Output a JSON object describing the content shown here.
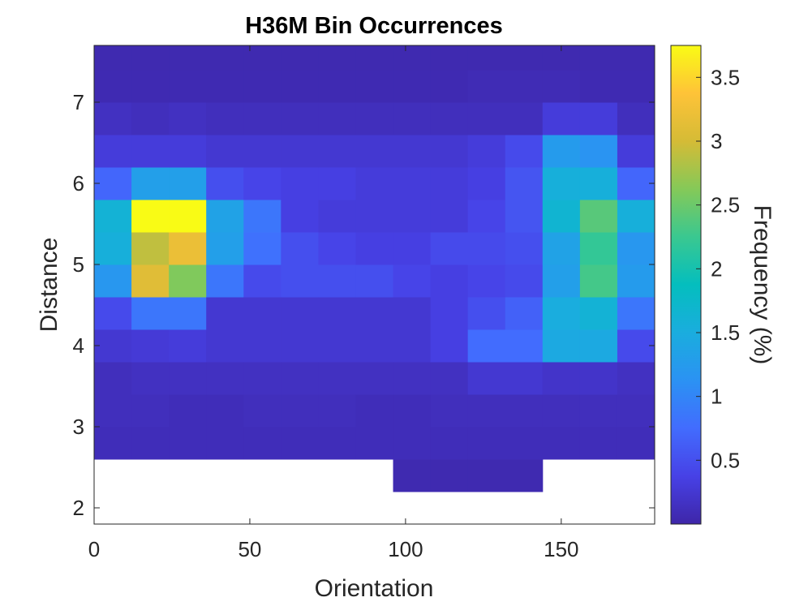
{
  "chart_data": {
    "type": "heatmap",
    "title": "H36M Bin Occurrences",
    "xlabel": "Orientation",
    "ylabel": "Distance",
    "colorbar_label": "Frequency (%)",
    "colormap": "parula",
    "xlim": [
      0,
      180
    ],
    "ylim": [
      1.8,
      7.7
    ],
    "clim": [
      0,
      3.75
    ],
    "x_ticks": [
      0,
      50,
      100,
      150
    ],
    "y_ticks": [
      2,
      3,
      4,
      5,
      6,
      7
    ],
    "colorbar_ticks": [
      0.5,
      1,
      1.5,
      2,
      2.5,
      3,
      3.5
    ],
    "x_bin_edges": [
      0,
      12,
      24,
      36,
      48,
      60,
      72,
      84,
      96,
      108,
      120,
      132,
      144,
      156,
      168,
      180
    ],
    "y_bin_edges": [
      2.2,
      2.6,
      3.0,
      3.4,
      3.8,
      4.2,
      4.6,
      5.0,
      5.4,
      5.8,
      6.2,
      6.6,
      7.0,
      7.4,
      7.8
    ],
    "values": [
      [
        null,
        null,
        null,
        null,
        null,
        null,
        null,
        null,
        0.05,
        0.05,
        0.05,
        0.05,
        null,
        null,
        null
      ],
      [
        0.1,
        0.1,
        0.1,
        0.1,
        0.1,
        0.1,
        0.1,
        0.1,
        0.1,
        0.1,
        0.1,
        0.1,
        0.1,
        0.1,
        0.1
      ],
      [
        0.12,
        0.12,
        0.1,
        0.1,
        0.12,
        0.12,
        0.12,
        0.1,
        0.1,
        0.12,
        0.12,
        0.12,
        0.12,
        0.12,
        0.12
      ],
      [
        0.12,
        0.15,
        0.15,
        0.15,
        0.15,
        0.15,
        0.15,
        0.15,
        0.15,
        0.15,
        0.25,
        0.25,
        0.2,
        0.2,
        0.15
      ],
      [
        0.25,
        0.28,
        0.3,
        0.25,
        0.25,
        0.25,
        0.25,
        0.25,
        0.25,
        0.35,
        0.75,
        0.75,
        1.45,
        1.45,
        0.45
      ],
      [
        0.45,
        0.85,
        0.85,
        0.25,
        0.25,
        0.25,
        0.25,
        0.25,
        0.25,
        0.35,
        0.5,
        0.65,
        1.5,
        1.6,
        0.85
      ],
      [
        1.2,
        3.1,
        2.6,
        0.85,
        0.45,
        0.5,
        0.5,
        0.5,
        0.4,
        0.35,
        0.4,
        0.45,
        1.3,
        2.3,
        1.25
      ],
      [
        1.55,
        2.9,
        3.2,
        1.3,
        0.8,
        0.5,
        0.4,
        0.35,
        0.35,
        0.45,
        0.45,
        0.5,
        1.35,
        2.2,
        1.2
      ],
      [
        1.6,
        3.75,
        3.75,
        1.35,
        0.85,
        0.35,
        0.3,
        0.3,
        0.3,
        0.3,
        0.4,
        0.55,
        1.65,
        2.4,
        1.55
      ],
      [
        0.7,
        1.3,
        1.3,
        0.5,
        0.4,
        0.35,
        0.35,
        0.3,
        0.3,
        0.3,
        0.35,
        0.55,
        1.55,
        1.55,
        0.7
      ],
      [
        0.3,
        0.3,
        0.3,
        0.25,
        0.25,
        0.25,
        0.25,
        0.25,
        0.25,
        0.25,
        0.3,
        0.45,
        1.25,
        1.15,
        0.3
      ],
      [
        0.15,
        0.12,
        0.15,
        0.12,
        0.12,
        0.12,
        0.12,
        0.12,
        0.12,
        0.12,
        0.12,
        0.12,
        0.3,
        0.3,
        0.12
      ],
      [
        0.06,
        0.06,
        0.06,
        0.06,
        0.06,
        0.06,
        0.06,
        0.06,
        0.06,
        0.06,
        0.08,
        0.08,
        0.08,
        0.06,
        0.06
      ],
      [
        0.05,
        0.05,
        0.05,
        0.05,
        0.05,
        0.05,
        0.05,
        0.05,
        0.05,
        0.05,
        0.05,
        0.05,
        0.05,
        0.05,
        0.05
      ]
    ]
  }
}
